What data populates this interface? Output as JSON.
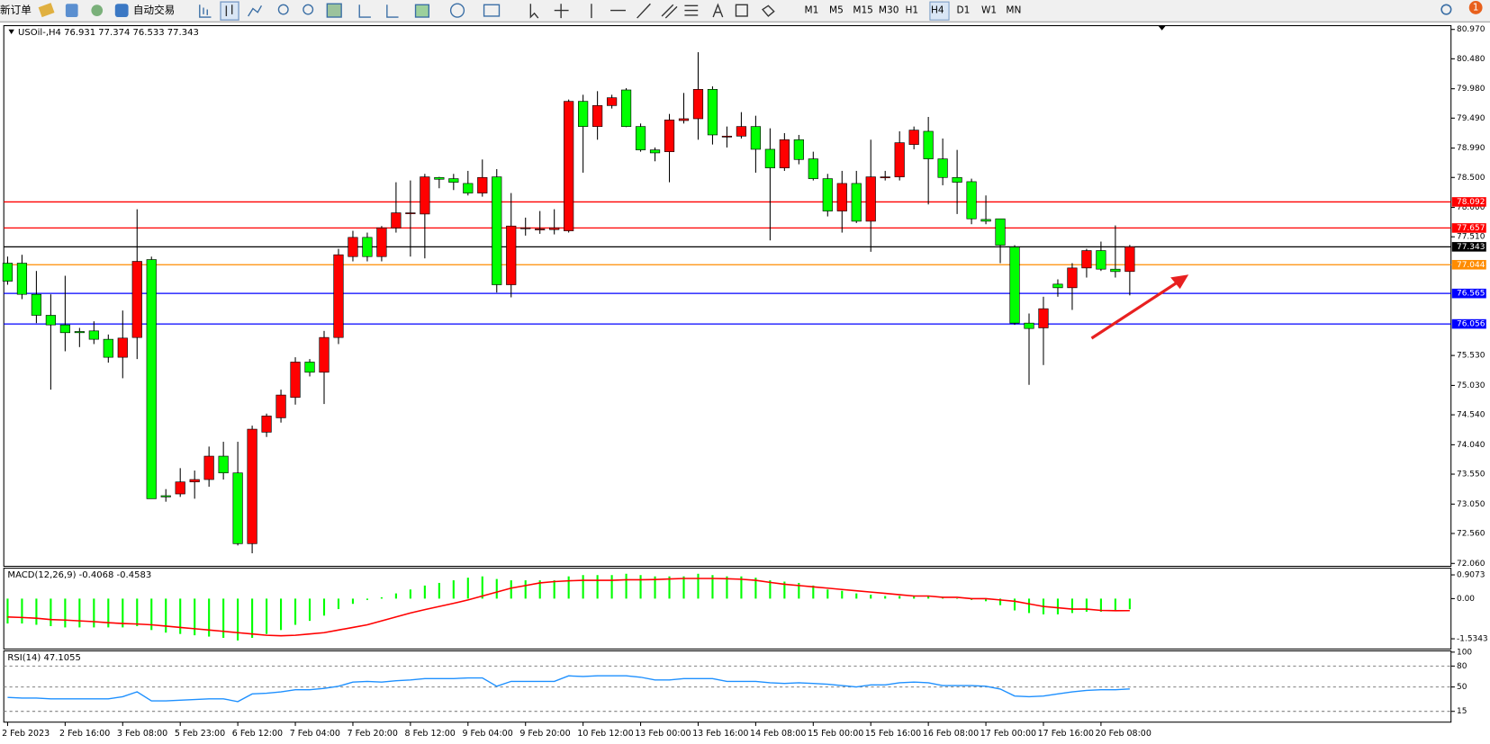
{
  "toolbar": {
    "new_order": "新订单",
    "auto_trading": "自动交易",
    "timeframes": [
      "M1",
      "M5",
      "M15",
      "M30",
      "H1",
      "H4",
      "D1",
      "W1",
      "MN"
    ],
    "active_timeframe": "H4",
    "notifications": 1
  },
  "chart_data": [
    {
      "type": "candlestick",
      "title": "USOil-,H4 76.931 77.374 76.533 77.343",
      "categories": [
        "2 Feb 2023",
        null,
        null,
        null,
        "2 Feb 16:00",
        null,
        null,
        null,
        "3 Feb 08:00",
        null,
        null,
        null,
        "5 Feb 23:00",
        null,
        null,
        null,
        "6 Feb 12:00",
        null,
        null,
        null,
        "7 Feb 04:00",
        null,
        null,
        null,
        "7 Feb 20:00",
        null,
        null,
        null,
        "8 Feb 12:00",
        null,
        null,
        null,
        "9 Feb 04:00",
        null,
        null,
        null,
        "9 Feb 20:00",
        null,
        null,
        null,
        "10 Feb 12:00",
        null,
        null,
        null,
        "13 Feb 00:00",
        null,
        null,
        null,
        "13 Feb 16:00",
        null,
        null,
        null,
        "14 Feb 08:00",
        null,
        null,
        null,
        "15 Feb 00:00",
        null,
        null,
        null,
        "15 Feb 16:00",
        null,
        null,
        null,
        "16 Feb 08:00",
        null,
        null,
        null,
        "17 Feb 00:00",
        null,
        null,
        null,
        "17 Feb 16:00",
        null,
        null,
        null,
        "20 Feb 08:00",
        null,
        null
      ],
      "open": [
        77.07,
        77.07,
        76.55,
        76.2,
        76.04,
        75.93,
        75.94,
        75.8,
        75.5,
        75.83,
        77.13,
        73.19,
        73.22,
        73.42,
        73.46,
        73.85,
        73.57,
        72.39,
        74.25,
        74.49,
        74.83,
        75.42,
        75.25,
        75.83,
        77.18,
        77.5,
        77.18,
        77.66,
        77.91,
        77.89,
        78.5,
        78.48,
        78.4,
        78.24,
        78.51,
        76.71,
        77.66,
        77.64,
        77.63,
        77.61,
        79.77,
        79.35,
        79.7,
        79.96,
        79.35,
        78.96,
        78.93,
        79.45,
        79.48,
        79.97,
        79.19,
        79.19,
        79.35,
        78.97,
        78.66,
        79.13,
        78.81,
        78.48,
        77.94,
        78.4,
        77.77,
        78.51,
        78.51,
        79.05,
        79.27,
        78.81,
        78.5,
        78.43,
        77.8,
        77.81,
        77.34,
        76.07,
        75.99,
        76.72,
        76.66,
        76.99,
        77.28,
        76.97,
        76.931
      ],
      "high": [
        77.18,
        77.21,
        76.94,
        76.55,
        76.86,
        75.99,
        76.1,
        75.88,
        76.28,
        77.97,
        77.18,
        73.3,
        73.65,
        73.61,
        74.01,
        74.09,
        74.09,
        74.36,
        74.56,
        74.96,
        75.5,
        75.47,
        75.94,
        77.31,
        77.61,
        77.58,
        77.69,
        78.42,
        78.45,
        78.56,
        78.51,
        78.56,
        78.61,
        78.8,
        78.64,
        78.24,
        77.83,
        77.94,
        77.97,
        79.8,
        79.88,
        79.94,
        79.88,
        79.99,
        79.4,
        79.0,
        79.56,
        79.91,
        80.59,
        80.02,
        79.35,
        79.59,
        79.53,
        79.32,
        79.24,
        79.21,
        78.93,
        78.56,
        78.61,
        78.61,
        79.13,
        78.61,
        79.27,
        79.35,
        79.51,
        79.15,
        78.96,
        78.48,
        78.2,
        77.81,
        77.37,
        76.23,
        76.51,
        76.8,
        77.07,
        77.31,
        77.43,
        77.7,
        77.374
      ],
      "low": [
        76.71,
        76.47,
        76.07,
        74.96,
        75.6,
        75.67,
        75.72,
        75.41,
        75.15,
        75.47,
        73.14,
        73.09,
        73.17,
        73.14,
        73.34,
        73.46,
        72.36,
        72.23,
        74.17,
        74.41,
        74.71,
        75.18,
        74.72,
        75.72,
        77.1,
        77.1,
        77.1,
        77.58,
        77.18,
        77.15,
        78.32,
        78.29,
        78.2,
        78.18,
        76.58,
        76.5,
        77.53,
        77.56,
        77.55,
        77.58,
        78.58,
        79.13,
        79.65,
        79.34,
        78.93,
        78.77,
        78.42,
        79.4,
        79.13,
        79.05,
        79.0,
        79.15,
        78.58,
        77.45,
        78.61,
        78.72,
        78.45,
        77.85,
        77.58,
        77.74,
        77.26,
        78.45,
        78.45,
        78.97,
        78.05,
        78.37,
        77.89,
        77.72,
        77.72,
        77.07,
        76.04,
        75.04,
        75.37,
        76.51,
        76.29,
        76.83,
        76.94,
        76.83,
        76.533
      ],
      "close": [
        76.77,
        76.55,
        76.2,
        76.04,
        75.91,
        75.91,
        75.8,
        75.5,
        75.82,
        77.1,
        73.14,
        73.17,
        73.42,
        73.46,
        73.85,
        73.57,
        72.39,
        74.3,
        74.52,
        74.87,
        75.42,
        75.25,
        75.83,
        77.21,
        77.5,
        77.18,
        77.66,
        77.91,
        77.91,
        78.51,
        78.47,
        78.42,
        78.24,
        78.5,
        76.71,
        77.69,
        77.66,
        77.64,
        77.66,
        79.77,
        79.35,
        79.7,
        79.83,
        79.35,
        78.96,
        78.91,
        79.46,
        79.48,
        79.97,
        79.21,
        79.19,
        79.35,
        78.97,
        78.66,
        79.13,
        78.8,
        78.48,
        77.94,
        78.4,
        77.77,
        78.51,
        78.51,
        79.08,
        79.29,
        78.81,
        78.5,
        78.42,
        77.81,
        77.77,
        77.37,
        76.07,
        75.98,
        76.31,
        76.66,
        76.99,
        77.28,
        76.97,
        76.93,
        77.343
      ],
      "up_color": "#ff0000",
      "down_color": "#00ff00",
      "ylim": [
        72.012,
        81.033
      ],
      "yticks": [
        {
          "value": 80.97,
          "label": "80.970"
        },
        {
          "value": 80.48,
          "label": "80.480"
        },
        {
          "value": 79.98,
          "label": "79.980"
        },
        {
          "value": 79.49,
          "label": "79.490"
        },
        {
          "value": 78.99,
          "label": "78.990"
        },
        {
          "value": 78.5,
          "label": "78.500"
        },
        {
          "value": 78,
          "label": "78.000"
        },
        {
          "value": 77.51,
          "label": "77.510"
        },
        {
          "value": 75.53,
          "label": "75.530"
        },
        {
          "value": 75.03,
          "label": "75.030"
        },
        {
          "value": 74.54,
          "label": "74.540"
        },
        {
          "value": 74.04,
          "label": "74.040"
        },
        {
          "value": 73.55,
          "label": "73.550"
        },
        {
          "value": 73.05,
          "label": "73.050"
        },
        {
          "value": 72.56,
          "label": "72.560"
        },
        {
          "value": 72.06,
          "label": "72.060"
        }
      ],
      "hlines": [
        {
          "value": 78.092,
          "color": "#ff0000"
        },
        {
          "value": 77.657,
          "color": "#ff0000"
        },
        {
          "value": 77.343,
          "color": "#000000"
        },
        {
          "value": 77.044,
          "color": "#ff8c00"
        },
        {
          "value": 76.565,
          "color": "#0000ff"
        },
        {
          "value": 76.056,
          "color": "#0000ff"
        }
      ]
    },
    {
      "type": "macd",
      "title": "MACD(12,26,9) -0.4068 -0.4583",
      "histogram": [
        -0.95,
        -0.95,
        -1.0,
        -1.05,
        -1.1,
        -1.1,
        -1.1,
        -1.1,
        -1.1,
        -1.05,
        -1.2,
        -1.3,
        -1.35,
        -1.4,
        -1.45,
        -1.5,
        -1.6,
        -1.5,
        -1.35,
        -1.2,
        -1.0,
        -0.85,
        -0.65,
        -0.4,
        -0.2,
        -0.05,
        0.05,
        0.2,
        0.35,
        0.5,
        0.6,
        0.7,
        0.8,
        0.85,
        0.75,
        0.7,
        0.7,
        0.7,
        0.7,
        0.85,
        0.9,
        0.9,
        0.9,
        0.95,
        0.9,
        0.85,
        0.85,
        0.85,
        0.95,
        0.9,
        0.85,
        0.85,
        0.8,
        0.7,
        0.65,
        0.6,
        0.5,
        0.35,
        0.3,
        0.2,
        0.15,
        0.1,
        0.1,
        0.1,
        0.1,
        0.05,
        0.0,
        -0.05,
        -0.1,
        -0.25,
        -0.45,
        -0.55,
        -0.6,
        -0.6,
        -0.55,
        -0.5,
        -0.5,
        -0.45,
        -0.4068
      ],
      "signal": [
        -0.7,
        -0.72,
        -0.75,
        -0.8,
        -0.82,
        -0.85,
        -0.88,
        -0.92,
        -0.95,
        -0.97,
        -1.0,
        -1.05,
        -1.1,
        -1.15,
        -1.2,
        -1.25,
        -1.3,
        -1.35,
        -1.4,
        -1.42,
        -1.4,
        -1.35,
        -1.3,
        -1.2,
        -1.1,
        -1.0,
        -0.85,
        -0.7,
        -0.55,
        -0.42,
        -0.3,
        -0.18,
        -0.05,
        0.1,
        0.25,
        0.4,
        0.5,
        0.6,
        0.65,
        0.68,
        0.7,
        0.7,
        0.7,
        0.72,
        0.72,
        0.73,
        0.75,
        0.77,
        0.77,
        0.77,
        0.76,
        0.74,
        0.7,
        0.62,
        0.55,
        0.5,
        0.45,
        0.4,
        0.35,
        0.3,
        0.25,
        0.2,
        0.15,
        0.1,
        0.1,
        0.05,
        0.05,
        0.0,
        0.0,
        -0.05,
        -0.1,
        -0.2,
        -0.3,
        -0.35,
        -0.4,
        -0.4,
        -0.45,
        -0.46,
        -0.4583
      ],
      "histogram_color": "#00ff00",
      "signal_color": "#ff0000",
      "ylim": [
        -1.924,
        1.162
      ],
      "yticks": [
        0.9073,
        {
          "value": 0,
          "label": "0.00"
        },
        -1.5343
      ]
    },
    {
      "type": "rsi",
      "title": "RSI(14) 47.1055",
      "values": [
        35,
        34,
        34,
        33,
        33,
        33,
        33,
        33,
        36,
        43,
        30,
        30,
        31,
        32,
        33,
        33,
        29,
        40,
        41,
        43,
        46,
        46,
        48,
        51,
        57,
        58,
        57,
        59,
        60,
        62,
        62,
        62,
        63,
        63,
        51,
        58,
        58,
        58,
        58,
        66,
        65,
        66,
        66,
        66,
        64,
        60,
        60,
        62,
        62,
        62,
        58,
        58,
        58,
        56,
        55,
        56,
        55,
        54,
        52,
        50,
        53,
        53,
        56,
        57,
        56,
        52,
        52,
        52,
        51,
        47,
        37,
        36,
        37,
        40,
        43,
        45,
        46,
        46,
        47.1055
      ],
      "color": "#1e90ff",
      "ylim": [
        -0.5,
        101.8
      ],
      "yticks": [
        100,
        80,
        50,
        15
      ],
      "grid": true
    }
  ]
}
